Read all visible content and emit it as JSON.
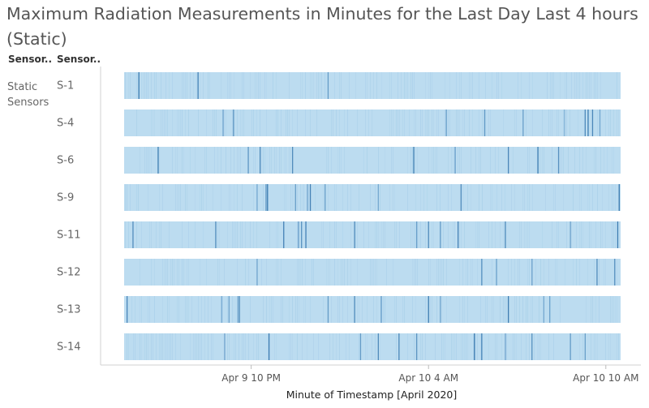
{
  "chart_data": {
    "type": "heatmap",
    "title": "Maximum Radiation Measurements in Minutes for the Last Day Last 4 hours (Static)",
    "column_headers": [
      "Sensor..",
      "Sensor.."
    ],
    "group": "Static Sensors",
    "rows": [
      "S-1",
      "S-4",
      "S-6",
      "S-9",
      "S-11",
      "S-12",
      "S-13",
      "S-14"
    ],
    "xlabel": "Minute of Timestamp [April 2020]",
    "x_ticks": [
      "Apr 9 10 PM",
      "Apr 10 4 AM",
      "Apr 10 10 AM"
    ],
    "x_tick_hours_from_apr9_midnight": [
      22,
      28,
      34
    ],
    "xlim_hours_from_apr9_midnight": [
      17.7,
      34.5
    ],
    "colors": {
      "low": "#bcdcf0",
      "high": "#2c6fa8"
    },
    "spikes": {
      "S-1": [
        [
          18.2,
          0.85
        ],
        [
          20.2,
          0.8
        ],
        [
          24.6,
          0.55
        ]
      ],
      "S-4": [
        [
          21.05,
          0.45
        ],
        [
          21.4,
          0.6
        ],
        [
          28.6,
          0.5
        ],
        [
          29.9,
          0.55
        ],
        [
          31.2,
          0.5
        ],
        [
          32.6,
          0.3
        ],
        [
          33.3,
          0.7
        ],
        [
          33.4,
          0.85
        ],
        [
          33.55,
          0.75
        ],
        [
          33.8,
          0.4
        ]
      ],
      "S-6": [
        [
          18.85,
          0.85
        ],
        [
          21.9,
          0.6
        ],
        [
          22.3,
          0.75
        ],
        [
          23.4,
          0.7
        ],
        [
          27.5,
          0.85
        ],
        [
          28.9,
          0.55
        ],
        [
          30.7,
          0.75
        ],
        [
          31.7,
          0.85
        ],
        [
          32.4,
          0.65
        ]
      ],
      "S-9": [
        [
          22.2,
          0.4
        ],
        [
          22.5,
          0.6
        ],
        [
          22.55,
          0.85
        ],
        [
          23.5,
          0.5
        ],
        [
          23.9,
          0.45
        ],
        [
          24.0,
          0.8
        ],
        [
          24.5,
          0.5
        ],
        [
          26.3,
          0.4
        ],
        [
          29.1,
          0.7
        ],
        [
          34.45,
          0.9
        ]
      ],
      "S-11": [
        [
          18.0,
          0.7
        ],
        [
          20.8,
          0.7
        ],
        [
          23.1,
          0.8
        ],
        [
          23.6,
          0.55
        ],
        [
          23.7,
          0.6
        ],
        [
          23.85,
          0.8
        ],
        [
          25.5,
          0.7
        ],
        [
          27.6,
          0.5
        ],
        [
          28.0,
          0.7
        ],
        [
          28.4,
          0.55
        ],
        [
          29.0,
          0.8
        ],
        [
          30.6,
          0.7
        ],
        [
          32.8,
          0.45
        ],
        [
          34.4,
          0.85
        ]
      ],
      "S-12": [
        [
          22.2,
          0.45
        ],
        [
          29.8,
          0.65
        ],
        [
          30.3,
          0.5
        ],
        [
          31.5,
          0.45
        ],
        [
          33.7,
          0.7
        ],
        [
          34.3,
          0.65
        ]
      ],
      "S-13": [
        [
          17.8,
          0.75
        ],
        [
          21.0,
          0.4
        ],
        [
          21.25,
          0.45
        ],
        [
          21.55,
          0.45
        ],
        [
          21.6,
          0.7
        ],
        [
          24.6,
          0.55
        ],
        [
          25.5,
          0.7
        ],
        [
          26.4,
          0.55
        ],
        [
          28.0,
          0.85
        ],
        [
          28.4,
          0.45
        ],
        [
          30.7,
          0.85
        ],
        [
          31.9,
          0.4
        ],
        [
          32.1,
          0.45
        ]
      ],
      "S-14": [
        [
          21.1,
          0.45
        ],
        [
          22.6,
          0.85
        ],
        [
          25.7,
          0.55
        ],
        [
          26.3,
          0.7
        ],
        [
          27.0,
          0.75
        ],
        [
          27.6,
          0.6
        ],
        [
          29.55,
          0.9
        ],
        [
          29.8,
          0.8
        ],
        [
          30.6,
          0.45
        ],
        [
          31.5,
          0.65
        ],
        [
          32.8,
          0.55
        ],
        [
          33.3,
          0.5
        ]
      ]
    }
  }
}
